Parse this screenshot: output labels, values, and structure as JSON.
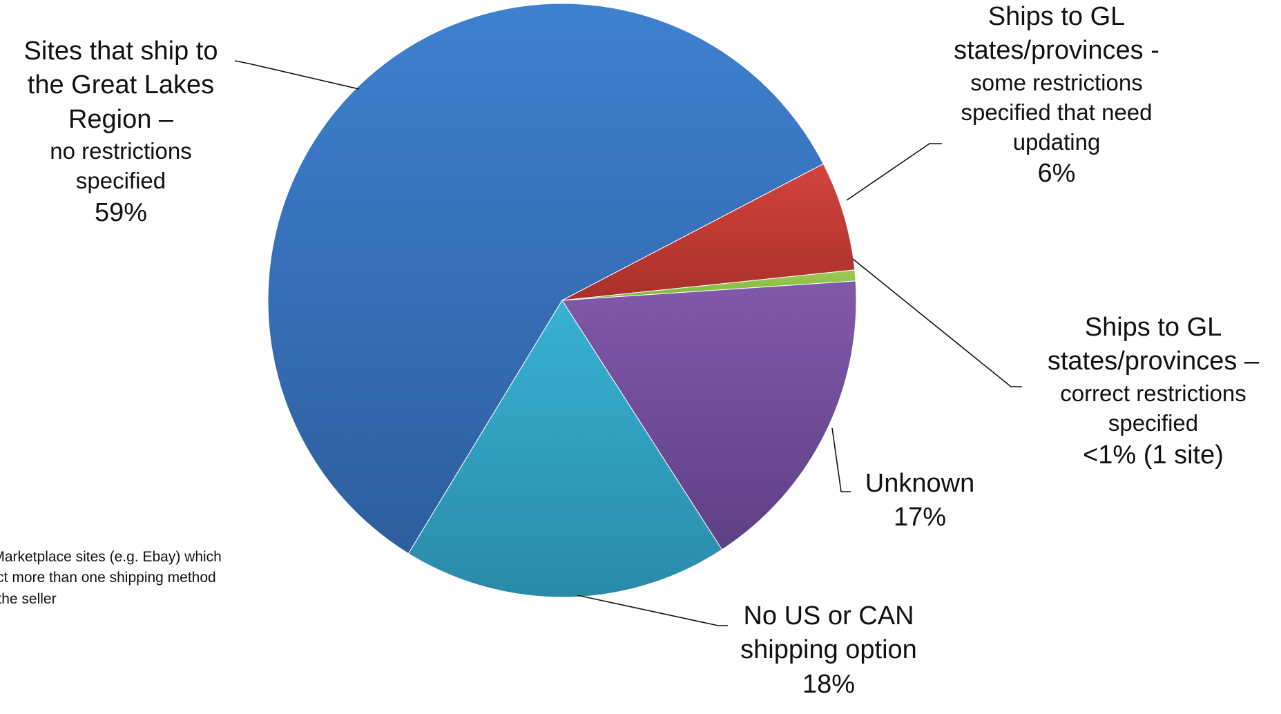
{
  "chart_data": {
    "type": "pie",
    "slices": [
      {
        "label": "Sites that ship to the Great Lakes Region – no restrictions specified",
        "value_label": "59%",
        "value": 59,
        "color": "#3B78C6"
      },
      {
        "label": "Ships to GL states/provinces - some restrictions specified that need updating",
        "value_label": "6%",
        "value": 6,
        "color": "#C23A35"
      },
      {
        "label": "Ships to GL states/provinces – correct restrictions specified",
        "value_label": "<1% (1 site)",
        "value": 0.6,
        "color": "#8FC14A"
      },
      {
        "label": "Unknown",
        "value_label": "17%",
        "value": 17,
        "color": "#77509E"
      },
      {
        "label": "No US or CAN shipping option",
        "value_label": "18%",
        "value": 18,
        "color": "#2FA5C5"
      }
    ]
  },
  "labels": {
    "great_lakes": {
      "line1": "Sites that ship to",
      "line2": "the Great Lakes",
      "line3": "Region –",
      "line4": "no restrictions",
      "line5": "specified",
      "pct": "59%"
    },
    "some_restrictions": {
      "line1": "Ships to GL",
      "line2": "states/provinces -",
      "line3": "some restrictions",
      "line4": "specified that need",
      "line5": "updating",
      "pct": "6%"
    },
    "correct_restrictions": {
      "line1": "Ships to GL",
      "line2": "states/provinces –",
      "line3": "correct restrictions",
      "line4": "specified",
      "pct": "<1%  (1 site)"
    },
    "unknown": {
      "line1": "Unknown",
      "pct": "17%"
    },
    "no_shipping": {
      "line1": "No US or CAN",
      "line2": "shipping option",
      "pct": "18%"
    }
  },
  "footnote": {
    "line1": "udes Marketplace sites (e.g. Ebay) which",
    "line2": "y reflect more than one shipping method",
    "line3": "ed on the seller"
  }
}
